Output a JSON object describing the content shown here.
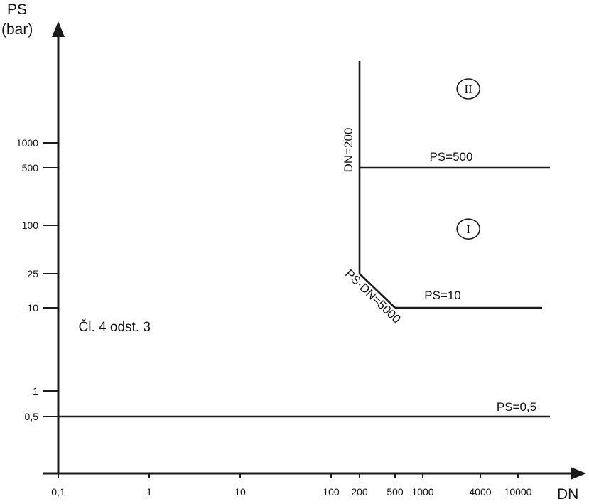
{
  "chart_data": {
    "type": "line",
    "title": "",
    "xlabel": "DN",
    "ylabel": [
      "PS",
      "(bar)"
    ],
    "x_scale": "log",
    "y_scale": "log",
    "x_ticks": [
      {
        "value": 0.1,
        "label": "0,1"
      },
      {
        "value": 1,
        "label": "1"
      },
      {
        "value": 10,
        "label": "10"
      },
      {
        "value": 100,
        "label": "100"
      },
      {
        "value": 200,
        "label": "200"
      },
      {
        "value": 500,
        "label": "500"
      },
      {
        "value": 1000,
        "label": "1000"
      },
      {
        "value": 4000,
        "label": "4000"
      },
      {
        "value": 10000,
        "label": "10000"
      }
    ],
    "y_ticks": [
      {
        "value": 0.5,
        "label": "0,5"
      },
      {
        "value": 1,
        "label": "1"
      },
      {
        "value": 10,
        "label": "10"
      },
      {
        "value": 25,
        "label": "25"
      },
      {
        "value": 100,
        "label": "100"
      },
      {
        "value": 500,
        "label": "500"
      },
      {
        "value": 1000,
        "label": "1000"
      }
    ],
    "boundaries": [
      {
        "id": "dn200",
        "label": "DN=200",
        "points": [
          [
            200,
            25
          ],
          [
            200,
            4000
          ]
        ]
      },
      {
        "id": "ps500",
        "label": "PS=500",
        "points": [
          [
            200,
            500
          ],
          [
            25000,
            500
          ]
        ]
      },
      {
        "id": "psdn5000",
        "label": "PS·DN=5000",
        "points": [
          [
            200,
            25
          ],
          [
            500,
            10
          ]
        ]
      },
      {
        "id": "ps10",
        "label": "PS=10",
        "points": [
          [
            500,
            10
          ],
          [
            20000,
            10
          ]
        ]
      },
      {
        "id": "ps05",
        "label": "PS=0,5",
        "points": [
          [
            0.1,
            0.5
          ],
          [
            25000,
            0.5
          ]
        ]
      }
    ],
    "regions": [
      {
        "id": "II",
        "label": "II",
        "x": 3000,
        "y": 2500
      },
      {
        "id": "I",
        "label": "I",
        "x": 3000,
        "y": 90
      }
    ],
    "annotations": [
      {
        "text": "Čl. 4 odst. 3",
        "x": 0.2,
        "y": 5
      }
    ],
    "grid": false
  }
}
